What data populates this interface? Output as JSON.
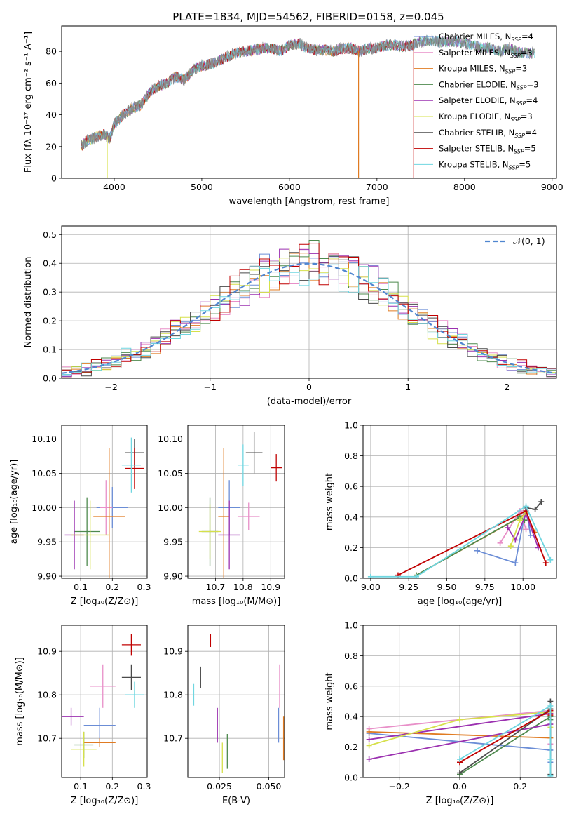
{
  "figure": {
    "title": "PLATE=1834, MJD=54562, FIBERID=0158, z=0.045"
  },
  "colors": {
    "Chabrier MILES": "#6b8dd6",
    "Salpeter MILES": "#e88fc8",
    "Kroupa MILES": "#e07b22",
    "Chabrier ELODIE": "#4e8a4e",
    "Salpeter ELODIE": "#9b30b0",
    "Kroupa ELODIE": "#d6e04a",
    "Chabrier STELIB": "#4a4a4a",
    "Salpeter STELIB": "#c00000",
    "Kroupa STELIB": "#6fd6e0"
  },
  "chart_data": [
    {
      "id": "spectrum",
      "type": "line",
      "title": "PLATE=1834, MJD=54562, FIBERID=0158, z=0.045",
      "xlabel": "wavelength [Angstrom, rest frame]",
      "ylabel": "Flux [fλ 10⁻¹⁷ erg cm⁻² s⁻¹ A⁻¹]",
      "xlim": [
        3400,
        9050
      ],
      "ylim": [
        0,
        96
      ],
      "xticks": [
        "4000",
        "5000",
        "6000",
        "7000",
        "8000",
        "9000"
      ],
      "yticks": [
        "0",
        "20",
        "40",
        "60",
        "80"
      ],
      "legend_position": "top-right",
      "legend": [
        {
          "name": "Chabrier MILES",
          "nssp": "4"
        },
        {
          "name": "Salpeter MILES",
          "nssp": "3"
        },
        {
          "name": "Kroupa MILES",
          "nssp": "3"
        },
        {
          "name": "Chabrier ELODIE",
          "nssp": "3"
        },
        {
          "name": "Salpeter ELODIE",
          "nssp": "4"
        },
        {
          "name": "Kroupa ELODIE",
          "nssp": "3"
        },
        {
          "name": "Chabrier STELIB",
          "nssp": "4"
        },
        {
          "name": "Salpeter STELIB",
          "nssp": "5"
        },
        {
          "name": "Kroupa STELIB",
          "nssp": "5"
        }
      ],
      "data_curve": {
        "x": [
          3620,
          3700,
          3800,
          3880,
          3950,
          4000,
          4100,
          4200,
          4300,
          4400,
          4500,
          4600,
          4700,
          4800,
          4900,
          5000,
          5100,
          5200,
          5300,
          5400,
          5500,
          5600,
          5700,
          5800,
          5900,
          6000,
          6100,
          6200,
          6300,
          6400,
          6500,
          6600,
          6700,
          6800,
          6900,
          7000,
          7100,
          7200,
          7300,
          7400,
          7500,
          7600,
          7700,
          7800,
          7900,
          8000,
          8100,
          8200,
          8300,
          8400,
          8500,
          8600,
          8700,
          8800
        ],
        "y": [
          20,
          24,
          26,
          28,
          25,
          34,
          40,
          44,
          46,
          54,
          58,
          60,
          64,
          62,
          68,
          71,
          72,
          74,
          77,
          79,
          80,
          81,
          82,
          82,
          80,
          84,
          85,
          82,
          81,
          81,
          80,
          82,
          82,
          80,
          82,
          82,
          84,
          84,
          83,
          84,
          86,
          87,
          86,
          86,
          86,
          85,
          84,
          82,
          82,
          80,
          82,
          80,
          79,
          79
        ]
      },
      "model_segments": [
        {
          "series": "Kroupa ELODIE",
          "x": [
            3620,
            3920
          ]
        },
        {
          "series": "Kroupa MILES",
          "x": [
            3620,
            6790
          ]
        },
        {
          "series": "Salpeter STELIB",
          "x": [
            3620,
            7420
          ]
        },
        {
          "series": "Kroupa STELIB",
          "x": [
            3620,
            8800
          ]
        }
      ]
    },
    {
      "id": "residual_hist",
      "type": "line",
      "xlabel": "(data-model)/error",
      "ylabel": "Normed distribution",
      "xlim": [
        -2.5,
        2.5
      ],
      "ylim": [
        0,
        0.53
      ],
      "xticks": [
        "−2",
        "−1",
        "0",
        "1",
        "2"
      ],
      "yticks": [
        "0.0",
        "0.1",
        "0.2",
        "0.3",
        "0.4",
        "0.5"
      ],
      "legend": "𝒩(0, 1)",
      "legend_position": "top-right",
      "bin_width": 0.1,
      "bin_start": -2.5
    },
    {
      "id": "age_vs_Z",
      "type": "scatter",
      "xlabel": "Z [log₁₀(Z/Z⊙)]",
      "ylabel": "age  [log₁₀(age/yr)]",
      "xlim": [
        0.04,
        0.31
      ],
      "ylim": [
        9.897,
        10.12
      ],
      "xticks": [
        "0.1",
        "0.2",
        "0.3"
      ],
      "yticks": [
        "9.90",
        "9.95",
        "10.00",
        "10.05",
        "10.10"
      ],
      "points": [
        {
          "series": "Chabrier MILES",
          "x": 0.2,
          "y": 10.0,
          "xerr": 0.05,
          "yerr": 0.03
        },
        {
          "series": "Salpeter MILES",
          "x": 0.18,
          "y": 10.0,
          "xerr": 0.02,
          "yerr": 0.04
        },
        {
          "series": "Kroupa MILES",
          "x": 0.19,
          "y": 9.987,
          "xerr": 0.05,
          "yerr": 0.1
        },
        {
          "series": "Chabrier ELODIE",
          "x": 0.12,
          "y": 9.965,
          "xerr": 0.04,
          "yerr": 0.05
        },
        {
          "series": "Salpeter ELODIE",
          "x": 0.08,
          "y": 9.96,
          "xerr": 0.03,
          "yerr": 0.05
        },
        {
          "series": "Kroupa ELODIE",
          "x": 0.13,
          "y": 9.96,
          "xerr": 0.06,
          "yerr": 0.05
        },
        {
          "series": "Chabrier STELIB",
          "x": 0.27,
          "y": 10.08,
          "xerr": 0.03,
          "yerr": 0.02
        },
        {
          "series": "Salpeter STELIB",
          "x": 0.27,
          "y": 10.057,
          "xerr": 0.03,
          "yerr": 0.03
        },
        {
          "series": "Kroupa STELIB",
          "x": 0.26,
          "y": 10.062,
          "xerr": 0.03,
          "yerr": 0.04
        }
      ]
    },
    {
      "id": "age_vs_mass",
      "type": "scatter",
      "xlabel": "mass [log₁₀(M/M⊙)]",
      "xlim": [
        10.6,
        10.95
      ],
      "ylim": [
        9.897,
        10.12
      ],
      "xticks": [
        "10.7",
        "10.8",
        "10.9"
      ],
      "points": [
        {
          "series": "Chabrier MILES",
          "x": 10.75,
          "y": 10.0,
          "xerr": 0.04,
          "yerr": 0.04
        },
        {
          "series": "Salpeter MILES",
          "x": 10.82,
          "y": 9.987,
          "xerr": 0.04,
          "yerr": 0.02
        },
        {
          "series": "Kroupa MILES",
          "x": 10.73,
          "y": 9.987,
          "xerr": 0.02,
          "yerr": 0.1
        },
        {
          "series": "Chabrier ELODIE",
          "x": 10.68,
          "y": 9.965,
          "xerr": 0.03,
          "yerr": 0.05
        },
        {
          "series": "Salpeter ELODIE",
          "x": 10.75,
          "y": 9.96,
          "xerr": 0.04,
          "yerr": 0.05
        },
        {
          "series": "Kroupa ELODIE",
          "x": 10.68,
          "y": 9.965,
          "xerr": 0.04,
          "yerr": 0.04
        },
        {
          "series": "Chabrier STELIB",
          "x": 10.84,
          "y": 10.08,
          "xerr": 0.03,
          "yerr": 0.03
        },
        {
          "series": "Salpeter STELIB",
          "x": 10.92,
          "y": 10.058,
          "xerr": 0.02,
          "yerr": 0.02
        },
        {
          "series": "Kroupa STELIB",
          "x": 10.8,
          "y": 10.062,
          "xerr": 0.02,
          "yerr": 0.03
        }
      ]
    },
    {
      "id": "weight_vs_age",
      "type": "line",
      "xlabel": "age  [log₁₀(age/yr)]",
      "ylabel": "mass weight",
      "xlim": [
        8.95,
        10.22
      ],
      "ylim": [
        0,
        1.0
      ],
      "xticks": [
        "9.00",
        "9.25",
        "9.50",
        "9.75",
        "10.00"
      ],
      "yticks": [
        "0.0",
        "0.2",
        "0.4",
        "0.6",
        "0.8",
        "1.0"
      ],
      "series": [
        {
          "series": "Chabrier MILES",
          "x": [
            9.7,
            9.95,
            10.02,
            10.05
          ],
          "y": [
            0.18,
            0.1,
            0.46,
            0.28
          ]
        },
        {
          "series": "Salpeter MILES",
          "x": [
            9.85,
            9.98,
            10.02
          ],
          "y": [
            0.23,
            0.44,
            0.32
          ]
        },
        {
          "series": "Kroupa MILES",
          "x": [
            9.3,
            10.02,
            10.08
          ],
          "y": [
            0.02,
            0.42,
            0.3
          ]
        },
        {
          "series": "Chabrier ELODIE",
          "x": [
            9.3,
            9.98,
            10.01
          ],
          "y": [
            0.02,
            0.4,
            0.38
          ]
        },
        {
          "series": "Salpeter ELODIE",
          "x": [
            9.9,
            9.95,
            10.02,
            10.1
          ],
          "y": [
            0.33,
            0.25,
            0.42,
            0.2
          ]
        },
        {
          "series": "Kroupa ELODIE",
          "x": [
            9.92,
            9.98,
            10.02
          ],
          "y": [
            0.21,
            0.38,
            0.43
          ]
        },
        {
          "series": "Chabrier STELIB",
          "x": [
            10.02,
            10.08,
            10.12
          ],
          "y": [
            0.46,
            0.45,
            0.5
          ]
        },
        {
          "series": "Salpeter STELIB",
          "x": [
            9.18,
            10.02,
            10.15
          ],
          "y": [
            0.02,
            0.44,
            0.1
          ]
        },
        {
          "series": "Kroupa STELIB",
          "x": [
            9.0,
            9.3,
            10.02,
            10.18
          ],
          "y": [
            0.01,
            0.01,
            0.47,
            0.12
          ]
        }
      ]
    },
    {
      "id": "mass_vs_Z",
      "type": "scatter",
      "xlabel": "Z [log₁₀(Z/Z⊙)]",
      "ylabel": "mass [log₁₀(M/M⊙)]",
      "xlim": [
        0.04,
        0.31
      ],
      "ylim": [
        10.61,
        10.96
      ],
      "xticks": [
        "0.1",
        "0.2",
        "0.3"
      ],
      "yticks": [
        "10.7",
        "10.8",
        "10.9"
      ],
      "points": [
        {
          "series": "Chabrier MILES",
          "x": 0.16,
          "y": 10.73,
          "xerr": 0.05,
          "yerr": 0.04
        },
        {
          "series": "Salpeter MILES",
          "x": 0.17,
          "y": 10.82,
          "xerr": 0.04,
          "yerr": 0.05
        },
        {
          "series": "Kroupa MILES",
          "x": 0.16,
          "y": 10.69,
          "xerr": 0.05,
          "yerr": 0.01
        },
        {
          "series": "Chabrier ELODIE",
          "x": 0.11,
          "y": 10.685,
          "xerr": 0.03,
          "yerr": 0.03
        },
        {
          "series": "Salpeter ELODIE",
          "x": 0.07,
          "y": 10.75,
          "xerr": 0.04,
          "yerr": 0.02
        },
        {
          "series": "Kroupa ELODIE",
          "x": 0.11,
          "y": 10.675,
          "xerr": 0.04,
          "yerr": 0.04
        },
        {
          "series": "Chabrier STELIB",
          "x": 0.26,
          "y": 10.84,
          "xerr": 0.03,
          "yerr": 0.03
        },
        {
          "series": "Salpeter STELIB",
          "x": 0.26,
          "y": 10.915,
          "xerr": 0.03,
          "yerr": 0.025
        },
        {
          "series": "Kroupa STELIB",
          "x": 0.27,
          "y": 10.8,
          "xerr": 0.03,
          "yerr": 0.03
        }
      ]
    },
    {
      "id": "mass_vs_ebv",
      "type": "scatter",
      "xlabel": "E(B-V)",
      "xlim": [
        0.009,
        0.058
      ],
      "ylim": [
        10.61,
        10.96
      ],
      "xticks": [
        "0.025",
        "0.050"
      ],
      "points": [
        {
          "series": "Chabrier MILES",
          "x": 0.055,
          "y": 10.73,
          "xerr": 0.0,
          "yerr": 0.04
        },
        {
          "series": "Salpeter MILES",
          "x": 0.0555,
          "y": 10.82,
          "xerr": 0.0,
          "yerr": 0.05
        },
        {
          "series": "Kroupa MILES",
          "x": 0.0575,
          "y": 10.7,
          "xerr": 0.0,
          "yerr": 0.05
        },
        {
          "series": "Chabrier ELODIE",
          "x": 0.029,
          "y": 10.67,
          "xerr": 0.0,
          "yerr": 0.04
        },
        {
          "series": "Salpeter ELODIE",
          "x": 0.024,
          "y": 10.73,
          "xerr": 0.0,
          "yerr": 0.04
        },
        {
          "series": "Kroupa ELODIE",
          "x": 0.0265,
          "y": 10.655,
          "xerr": 0.0,
          "yerr": 0.035
        },
        {
          "series": "Chabrier STELIB",
          "x": 0.0155,
          "y": 10.84,
          "xerr": 0.0,
          "yerr": 0.025
        },
        {
          "series": "Salpeter STELIB",
          "x": 0.0205,
          "y": 10.925,
          "xerr": 0.0,
          "yerr": 0.015
        },
        {
          "series": "Kroupa STELIB",
          "x": 0.012,
          "y": 10.8,
          "xerr": 0.0,
          "yerr": 0.025
        }
      ]
    },
    {
      "id": "weight_vs_Z",
      "type": "line",
      "xlabel": "Z [log₁₀(Z/Z⊙)]",
      "ylabel": "mass weight",
      "xlim": [
        -0.32,
        0.32
      ],
      "ylim": [
        0,
        1.0
      ],
      "xticks": [
        "−0.2",
        "0.0",
        "0.2"
      ],
      "yticks": [
        "0.0",
        "0.2",
        "0.4",
        "0.6",
        "0.8",
        "1.0"
      ],
      "series": [
        {
          "series": "Chabrier MILES",
          "x": [
            -0.3,
            0.3,
            0.3,
            0.3
          ],
          "y": [
            0.29,
            0.18,
            0.1,
            0.44
          ]
        },
        {
          "series": "Salpeter MILES",
          "x": [
            -0.3,
            0.3,
            0.3
          ],
          "y": [
            0.32,
            0.44,
            0.22
          ]
        },
        {
          "series": "Kroupa MILES",
          "x": [
            -0.3,
            0.3,
            0.3
          ],
          "y": [
            0.3,
            0.26,
            0.44
          ]
        },
        {
          "series": "Chabrier ELODIE",
          "x": [
            0.0,
            0.3,
            0.3
          ],
          "y": [
            0.02,
            0.4,
            0.38
          ]
        },
        {
          "series": "Salpeter ELODIE",
          "x": [
            -0.3,
            0.3,
            0.3,
            -0.3
          ],
          "y": [
            0.12,
            0.35,
            0.42,
            0.25
          ]
        },
        {
          "series": "Kroupa ELODIE",
          "x": [
            -0.3,
            0.0,
            0.3,
            0.3
          ],
          "y": [
            0.21,
            0.38,
            0.43,
            0.33
          ]
        },
        {
          "series": "Chabrier STELIB",
          "x": [
            0.0,
            0.3,
            0.3,
            0.3
          ],
          "y": [
            0.03,
            0.45,
            0.5,
            0.02
          ]
        },
        {
          "series": "Salpeter STELIB",
          "x": [
            0.0,
            0.3,
            0.3
          ],
          "y": [
            0.1,
            0.44,
            0.41
          ]
        },
        {
          "series": "Kroupa STELIB",
          "x": [
            0.0,
            0.3,
            0.3,
            0.3
          ],
          "y": [
            0.12,
            0.47,
            0.01,
            0.12
          ]
        }
      ]
    }
  ]
}
